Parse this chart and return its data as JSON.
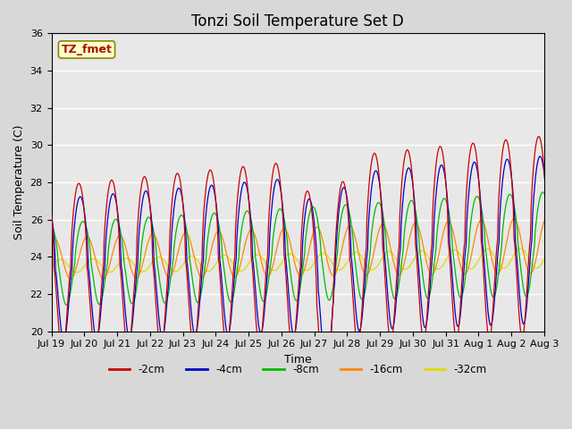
{
  "title": "Tonzi Soil Temperature Set D",
  "xlabel": "Time",
  "ylabel": "Soil Temperature (C)",
  "ylim": [
    20,
    36
  ],
  "tick_labels": [
    "Jul 19",
    "Jul 20",
    "Jul 21",
    "Jul 22",
    "Jul 23",
    "Jul 24",
    "Jul 25",
    "Jul 26",
    "Jul 27",
    "Jul 28",
    "Jul 29",
    "Jul 30",
    "Jul 31",
    "Aug 1",
    "Aug 2",
    "Aug 3"
  ],
  "legend_labels": [
    "-2cm",
    "-4cm",
    "-8cm",
    "-16cm",
    "-32cm"
  ],
  "colors": [
    "#cc0000",
    "#0000cc",
    "#00bb00",
    "#ff8800",
    "#dddd00"
  ],
  "annotation_text": "TZ_fmet",
  "background_color": "#e8e8e8",
  "grid_color": "#ffffff",
  "title_fontsize": 12,
  "label_fontsize": 9,
  "tick_fontsize": 8
}
